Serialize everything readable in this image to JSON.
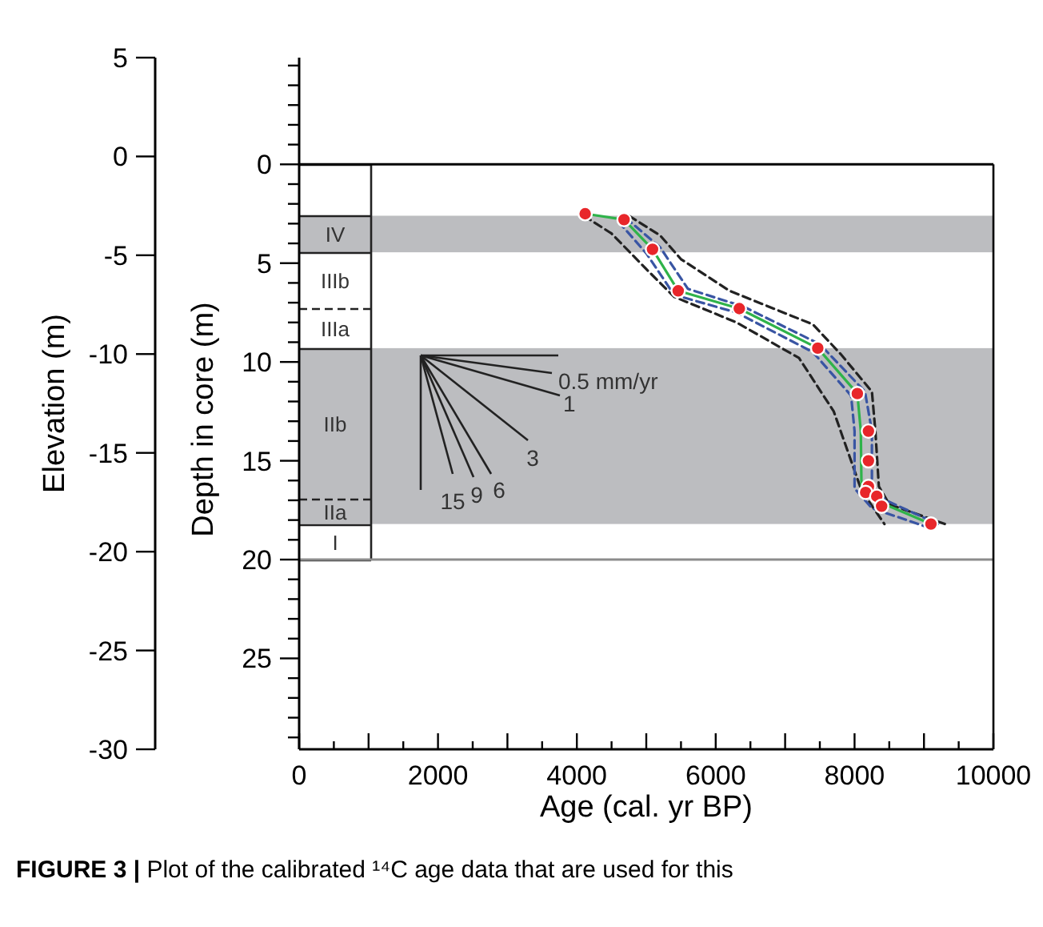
{
  "chart_data": {
    "type": "line",
    "xlabel": "Age (cal. yr BP)",
    "ylabel": "Depth in core (m)",
    "y2label": "Elevation (m)",
    "xlim": [
      0,
      10000
    ],
    "xticks": [
      0,
      {
        "value": 500,
        "label": null
      },
      {
        "value": 1000,
        "label": null
      },
      {
        "value": 1500,
        "label": null
      },
      2000,
      {
        "value": 2500,
        "label": null
      },
      {
        "value": 3000,
        "label": null
      },
      {
        "value": 3500,
        "label": null
      },
      4000,
      {
        "value": 4500,
        "label": null
      },
      {
        "value": 5000,
        "label": null
      },
      {
        "value": 5500,
        "label": null
      },
      6000,
      {
        "value": 6500,
        "label": null
      },
      {
        "value": 7000,
        "label": null
      },
      {
        "value": 7500,
        "label": null
      },
      8000,
      {
        "value": 8500,
        "label": null
      },
      {
        "value": 9000,
        "label": null
      },
      {
        "value": 9500,
        "label": null
      },
      10000
    ],
    "ylim": [
      29.6,
      -5.4
    ],
    "yticks": [
      {
        "value": -5,
        "label": null
      },
      {
        "value": -4,
        "label": null
      },
      {
        "value": -3,
        "label": null
      },
      {
        "value": -2,
        "label": null
      },
      {
        "value": -1,
        "label": null
      },
      0,
      {
        "value": 1,
        "label": null
      },
      {
        "value": 2,
        "label": null
      },
      {
        "value": 3,
        "label": null
      },
      {
        "value": 4,
        "label": null
      },
      5,
      {
        "value": 6,
        "label": null
      },
      {
        "value": 7,
        "label": null
      },
      {
        "value": 8,
        "label": null
      },
      {
        "value": 9,
        "label": null
      },
      10,
      {
        "value": 11,
        "label": null
      },
      {
        "value": 12,
        "label": null
      },
      {
        "value": 13,
        "label": null
      },
      {
        "value": 14,
        "label": null
      },
      15,
      {
        "value": 16,
        "label": null
      },
      {
        "value": 17,
        "label": null
      },
      {
        "value": 18,
        "label": null
      },
      {
        "value": 19,
        "label": null
      },
      20,
      {
        "value": 21,
        "label": null
      },
      {
        "value": 22,
        "label": null
      },
      {
        "value": 23,
        "label": null
      },
      {
        "value": 24,
        "label": null
      },
      25,
      {
        "value": 26,
        "label": null
      },
      {
        "value": 27,
        "label": null
      },
      {
        "value": 28,
        "label": null
      },
      {
        "value": 29,
        "label": null
      }
    ],
    "y2lim": [
      -30,
      5
    ],
    "y2ticks": [
      -30,
      -25,
      -20,
      -15,
      -10,
      -5,
      0,
      5
    ],
    "bands": [
      {
        "axis": "y",
        "from": 2.6,
        "to": 4.45,
        "color": "#bcbdc0"
      },
      {
        "axis": "y",
        "from": 9.3,
        "to": 18.2,
        "color": "#bcbdc0"
      }
    ],
    "ref_lines": [
      {
        "axis": "y",
        "value": 0,
        "color": "#000000"
      },
      {
        "axis": "y",
        "value": 20,
        "color": "#8c8c8c"
      }
    ],
    "series": [
      {
        "color": "#222222",
        "line_style": "dashed",
        "marker": "none",
        "x": [
          4100,
          4500,
          5000,
          5400,
          6300,
          7200,
          7700,
          7900,
          8100,
          8430
        ],
        "values": [
          2.6,
          3.5,
          5.3,
          6.7,
          8.0,
          9.8,
          12.5,
          14.5,
          16.5,
          18.2
        ]
      },
      {
        "color": "#222222",
        "line_style": "dashed",
        "marker": "none",
        "x": [
          4750,
          5200,
          5500,
          6200,
          7400,
          7800,
          8250,
          8300,
          8350,
          8500,
          9300
        ],
        "values": [
          2.6,
          3.6,
          4.8,
          6.4,
          8.1,
          9.6,
          11.5,
          13.5,
          16.3,
          17.2,
          18.2
        ]
      },
      {
        "color": "#3955a3",
        "line_style": "dashed",
        "marker": "none",
        "x": [
          4600,
          5000,
          5400,
          6300,
          7400,
          7950,
          8000,
          8000,
          8250,
          9000
        ],
        "values": [
          2.9,
          4.5,
          6.6,
          7.5,
          9.5,
          11.7,
          13.5,
          16.4,
          17.4,
          18.3
        ]
      },
      {
        "color": "#3955a3",
        "line_style": "dashed",
        "marker": "none",
        "x": [
          4700,
          5200,
          5600,
          6400,
          7500,
          8150,
          8250,
          8250,
          8450,
          9200
        ],
        "values": [
          2.7,
          4.2,
          6.3,
          7.2,
          9.1,
          11.5,
          13.5,
          16.3,
          17.0,
          18.2
        ]
      },
      {
        "color": "#2fb34a",
        "line_style": "solid",
        "marker": "none",
        "x": [
          4120,
          4680,
          5090,
          5460,
          6340,
          7470,
          8040,
          8090,
          8100,
          8300,
          9100
        ],
        "values": [
          2.5,
          2.8,
          4.3,
          6.4,
          7.3,
          9.3,
          11.6,
          13.5,
          16.3,
          17.0,
          18.2
        ]
      },
      {
        "type": "scatter",
        "color": "#e8262a",
        "marker": "circle",
        "x": [
          4120,
          4680,
          5090,
          5460,
          6340,
          7470,
          8040,
          8200,
          8200,
          8200,
          8160,
          8320,
          8390,
          9100
        ],
        "values": [
          2.5,
          2.8,
          4.3,
          6.4,
          7.3,
          9.3,
          11.6,
          13.5,
          15.0,
          16.3,
          16.6,
          16.8,
          17.3,
          18.2
        ]
      }
    ],
    "annotations": [
      "0.5 mm/yr",
      "1",
      "3",
      "6",
      "9",
      "15",
      "IV",
      "IIIb",
      "IIIa",
      "IIb",
      "IIa",
      "I",
      "FIGURE 3 |",
      "Plot of the calibrated ¹⁴C age data that are used for this"
    ]
  }
}
